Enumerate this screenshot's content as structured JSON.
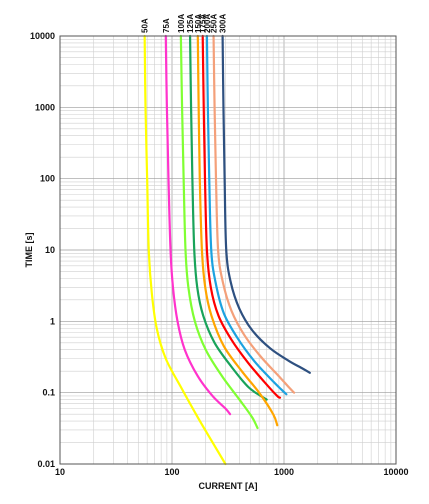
{
  "chart_data": {
    "type": "line",
    "xlabel": "CURRENT [A]",
    "ylabel": "TIME [s]",
    "xscale": "log",
    "yscale": "log",
    "xlim": [
      10,
      10000
    ],
    "ylim": [
      0.01,
      10000
    ],
    "grid": true,
    "legend": "labels above plot at top of each curve",
    "x_tick_labels": [
      "10",
      "100",
      "1000",
      "10000"
    ],
    "y_tick_labels": [
      "0.01",
      "0.1",
      "1",
      "10",
      "100",
      "1000",
      "10000"
    ],
    "series": [
      {
        "name": "50A",
        "color": "#ffff00",
        "points": [
          [
            57,
            10000
          ],
          [
            58,
            1000
          ],
          [
            60,
            100
          ],
          [
            62,
            10
          ],
          [
            66,
            2.5
          ],
          [
            73,
            0.8
          ],
          [
            88,
            0.3
          ],
          [
            120,
            0.12
          ],
          [
            170,
            0.045
          ],
          [
            240,
            0.018
          ],
          [
            300,
            0.01
          ]
        ]
      },
      {
        "name": "75A",
        "color": "#ff33cc",
        "points": [
          [
            88,
            10000
          ],
          [
            90,
            1000
          ],
          [
            93,
            100
          ],
          [
            97,
            10
          ],
          [
            102,
            3
          ],
          [
            112,
            1
          ],
          [
            130,
            0.4
          ],
          [
            170,
            0.17
          ],
          [
            230,
            0.09
          ],
          [
            300,
            0.06
          ],
          [
            330,
            0.05
          ]
        ]
      },
      {
        "name": "100A",
        "color": "#80ff33",
        "points": [
          [
            120,
            10000
          ],
          [
            123,
            1000
          ],
          [
            127,
            100
          ],
          [
            132,
            10
          ],
          [
            140,
            3
          ],
          [
            160,
            1
          ],
          [
            200,
            0.4
          ],
          [
            280,
            0.17
          ],
          [
            400,
            0.08
          ],
          [
            520,
            0.045
          ],
          [
            580,
            0.032
          ]
        ]
      },
      {
        "name": "125A",
        "color": "#19a35a",
        "points": [
          [
            145,
            10000
          ],
          [
            148,
            1000
          ],
          [
            152,
            100
          ],
          [
            158,
            10
          ],
          [
            168,
            3
          ],
          [
            190,
            1.2
          ],
          [
            240,
            0.5
          ],
          [
            340,
            0.23
          ],
          [
            480,
            0.12
          ],
          [
            620,
            0.09
          ],
          [
            700,
            0.08
          ]
        ]
      },
      {
        "name": "150A",
        "color": "#ffa500",
        "points": [
          [
            170,
            10000
          ],
          [
            173,
            1000
          ],
          [
            177,
            100
          ],
          [
            185,
            10
          ],
          [
            198,
            3
          ],
          [
            225,
            1.2
          ],
          [
            290,
            0.45
          ],
          [
            420,
            0.2
          ],
          [
            600,
            0.1
          ],
          [
            800,
            0.05
          ],
          [
            870,
            0.035
          ]
        ]
      },
      {
        "name": "175A",
        "color": "#ff0000",
        "points": [
          [
            188,
            10000
          ],
          [
            192,
            1000
          ],
          [
            197,
            100
          ],
          [
            205,
            10
          ],
          [
            222,
            3
          ],
          [
            260,
            1.2
          ],
          [
            340,
            0.55
          ],
          [
            480,
            0.26
          ],
          [
            700,
            0.13
          ],
          [
            870,
            0.09
          ],
          [
            920,
            0.085
          ]
        ]
      },
      {
        "name": "200A",
        "color": "#1ca2e0",
        "points": [
          [
            205,
            10000
          ],
          [
            209,
            1000
          ],
          [
            215,
            100
          ],
          [
            224,
            10
          ],
          [
            245,
            3.5
          ],
          [
            290,
            1.3
          ],
          [
            380,
            0.6
          ],
          [
            540,
            0.28
          ],
          [
            780,
            0.15
          ],
          [
            950,
            0.11
          ],
          [
            1050,
            0.095
          ]
        ]
      },
      {
        "name": "250A",
        "color": "#f4a07a",
        "points": [
          [
            235,
            10000
          ],
          [
            240,
            1000
          ],
          [
            247,
            100
          ],
          [
            258,
            10
          ],
          [
            285,
            3.5
          ],
          [
            340,
            1.4
          ],
          [
            440,
            0.65
          ],
          [
            620,
            0.32
          ],
          [
            900,
            0.17
          ],
          [
            1100,
            0.12
          ],
          [
            1230,
            0.1
          ]
        ]
      },
      {
        "name": "300A",
        "color": "#2e5080",
        "points": [
          [
            283,
            10000
          ],
          [
            288,
            1000
          ],
          [
            295,
            100
          ],
          [
            305,
            10
          ],
          [
            335,
            3.5
          ],
          [
            400,
            1.5
          ],
          [
            520,
            0.75
          ],
          [
            750,
            0.42
          ],
          [
            1100,
            0.28
          ],
          [
            1450,
            0.22
          ],
          [
            1700,
            0.19
          ]
        ]
      }
    ]
  }
}
